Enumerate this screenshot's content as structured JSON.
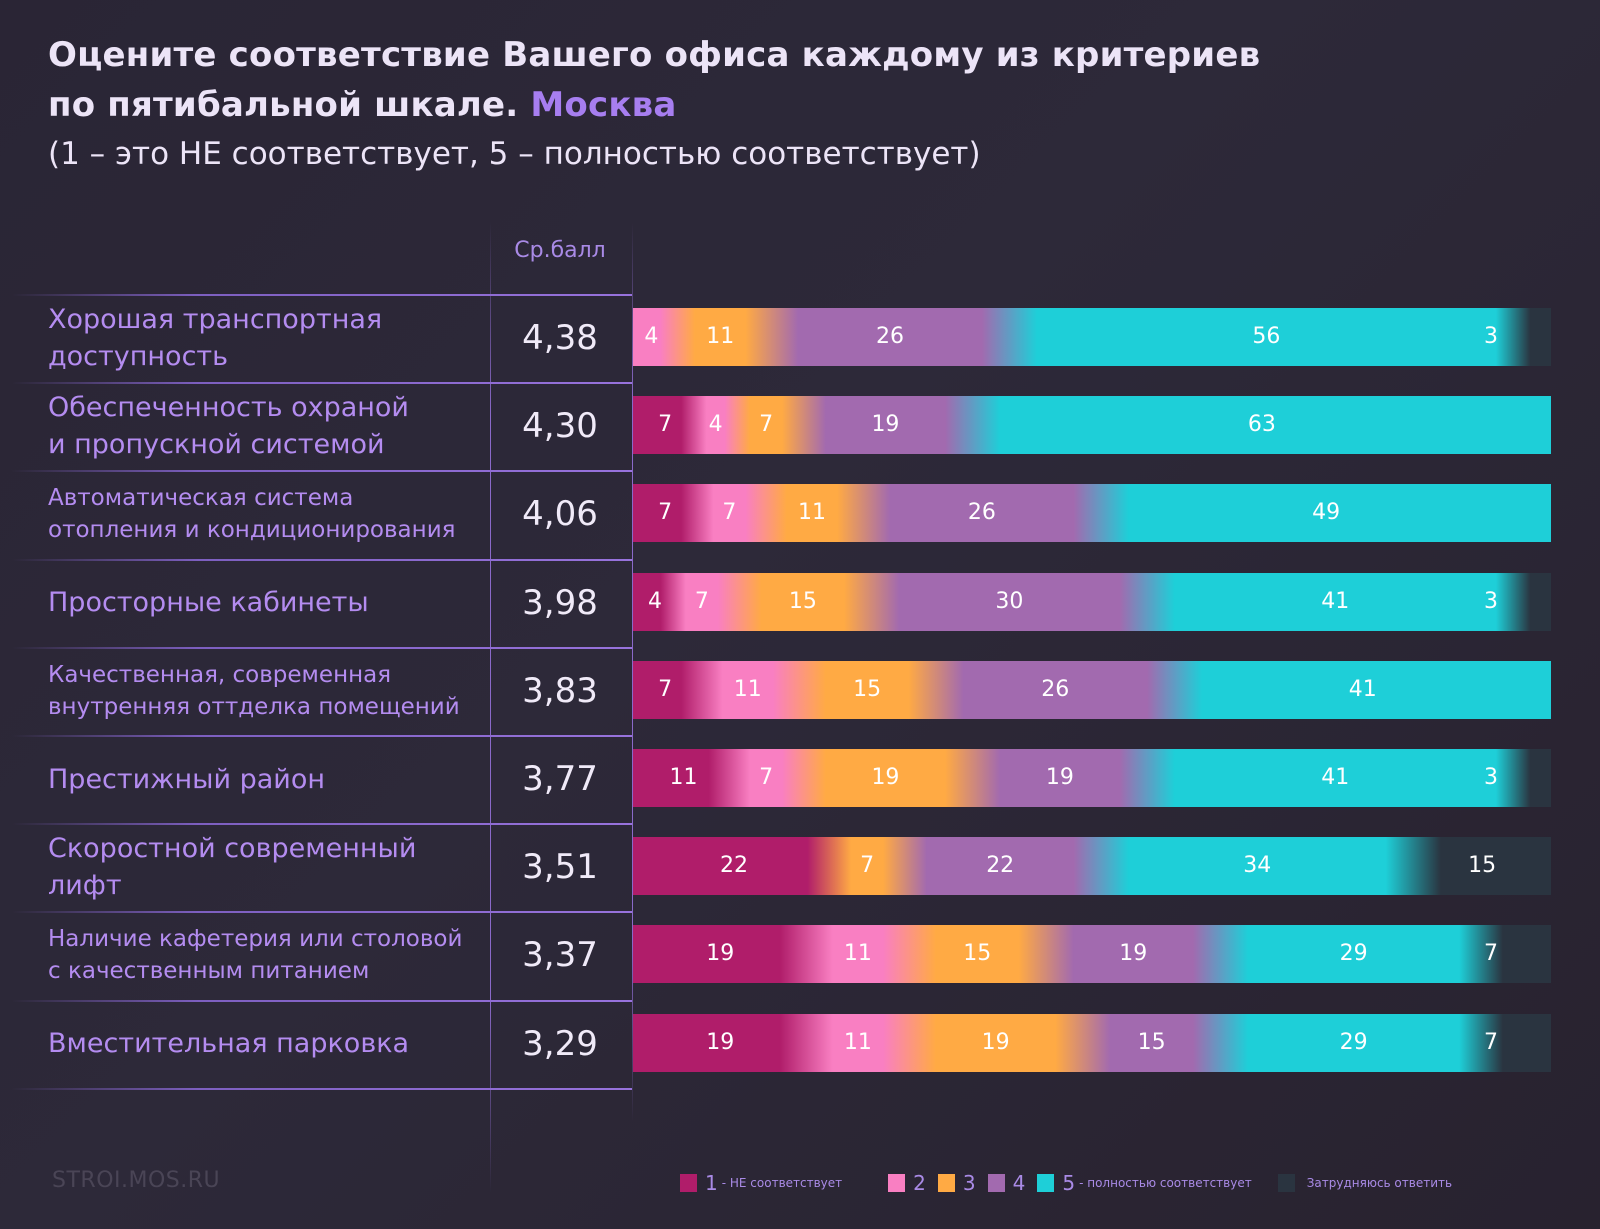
{
  "header": {
    "title_line1": "Оцените соответствие Вашего офиса каждому из критериев",
    "title_line2": "по пятибальной шкале.",
    "city": "Москва",
    "subtitle": "(1 – это НЕ соответствует, 5 – полностью соответствует)"
  },
  "column_header": "Ср.балл",
  "watermark": "STROI.MOS.RU",
  "colors": {
    "1": "#b01d6a",
    "2": "#f97fc2",
    "3": "#ffaa44",
    "4": "#a26aaf",
    "5": "#1ecfd8",
    "na": "#2a3440",
    "accent": "#a77ef0"
  },
  "legend": [
    {
      "key": "1",
      "label": "1",
      "note": "- НЕ соответствует"
    },
    {
      "key": "2",
      "label": "2",
      "note": ""
    },
    {
      "key": "3",
      "label": "3",
      "note": ""
    },
    {
      "key": "4",
      "label": "4",
      "note": ""
    },
    {
      "key": "5",
      "label": "5",
      "note": "- полностью соответствует"
    },
    {
      "key": "na",
      "label": "",
      "note": "Затрудняюсь ответить"
    }
  ],
  "chart_data": {
    "type": "bar",
    "stacked": true,
    "orientation": "horizontal",
    "title": "Оцените соответствие Вашего офиса каждому из критериев по пятибальной шкале. Москва",
    "subtitle": "(1 – это НЕ соответствует, 5 – полностью соответствует)",
    "units": "%",
    "legend_position": "bottom",
    "series_names": [
      "1 - НЕ соответствует",
      "2",
      "3",
      "4",
      "5 - полностью соответствует",
      "Затрудняюсь ответить"
    ],
    "categories": [
      {
        "label": "Хорошая транспортная доступность",
        "lines": [
          "Хорошая транспортная",
          "доступность"
        ],
        "avg": "4,38",
        "small": false,
        "values": {
          "1": 0,
          "2": 4,
          "3": 11,
          "4": 26,
          "5": 56,
          "na": 3
        }
      },
      {
        "label": "Обеспеченность охраной и пропускной системой",
        "lines": [
          "Обеспеченность охраной",
          "и пропускной системой"
        ],
        "avg": "4,30",
        "small": false,
        "values": {
          "1": 7,
          "2": 4,
          "3": 7,
          "4": 19,
          "5": 63,
          "na": 0
        }
      },
      {
        "label": "Автоматическая система отопления и кондиционирования",
        "lines": [
          "Автоматическая система",
          "отопления и кондиционирования"
        ],
        "avg": "4,06",
        "small": true,
        "values": {
          "1": 7,
          "2": 7,
          "3": 11,
          "4": 26,
          "5": 49,
          "na": 0
        }
      },
      {
        "label": "Просторные кабинеты",
        "lines": [
          "Просторные кабинеты"
        ],
        "avg": "3,98",
        "small": false,
        "values": {
          "1": 4,
          "2": 7,
          "3": 15,
          "4": 30,
          "5": 41,
          "na": 3
        }
      },
      {
        "label": "Качественная, современная внутренняя оттделка помещений",
        "lines": [
          "Качественная, современная",
          "внутренняя оттделка помещений"
        ],
        "avg": "3,83",
        "small": true,
        "values": {
          "1": 7,
          "2": 11,
          "3": 15,
          "4": 26,
          "5": 41,
          "na": 0
        }
      },
      {
        "label": "Престижный район",
        "lines": [
          "Престижный район"
        ],
        "avg": "3,77",
        "small": false,
        "values": {
          "1": 11,
          "2": 7,
          "3": 19,
          "4": 19,
          "5": 41,
          "na": 3
        }
      },
      {
        "label": "Скоростной современный лифт",
        "lines": [
          "Скоростной современный",
          "лифт"
        ],
        "avg": "3,51",
        "small": false,
        "values": {
          "1": 22,
          "2": 0,
          "3": 7,
          "4": 22,
          "5": 34,
          "na": 15
        }
      },
      {
        "label": "Наличие кафетерия или столовой с качественным питанием",
        "lines": [
          "Наличие кафетерия или столовой",
          "с качественным питанием"
        ],
        "avg": "3,37",
        "small": true,
        "values": {
          "1": 19,
          "2": 11,
          "3": 15,
          "4": 19,
          "5": 29,
          "na": 7
        }
      },
      {
        "label": "Вместительная парковка",
        "lines": [
          "Вместительная парковка"
        ],
        "avg": "3,29",
        "small": false,
        "values": {
          "1": 19,
          "2": 11,
          "3": 19,
          "4": 15,
          "5": 29,
          "na": 7
        }
      }
    ],
    "xlim": [
      0,
      100
    ]
  }
}
